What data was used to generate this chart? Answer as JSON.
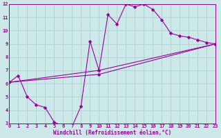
{
  "xlabel": "Windchill (Refroidissement éolien,°C)",
  "background_color": "#cce8e8",
  "grid_color": "#aacccc",
  "line_color": "#990099",
  "xmin": 0,
  "xmax": 23,
  "ymin": 3,
  "ymax": 12,
  "line1_x": [
    0,
    1,
    2,
    3,
    4,
    5,
    6,
    7,
    8,
    9,
    10,
    11,
    12,
    13,
    14,
    15,
    16,
    17,
    18,
    19,
    20,
    21,
    22,
    23
  ],
  "line1_y": [
    6.1,
    6.6,
    5.0,
    4.4,
    4.2,
    3.1,
    2.8,
    2.75,
    4.3,
    9.2,
    7.0,
    11.2,
    10.5,
    12.0,
    11.8,
    12.0,
    11.6,
    10.8,
    9.8,
    9.6,
    9.5,
    9.3,
    9.1,
    9.0
  ],
  "line2_x": [
    0,
    10,
    23
  ],
  "line2_y": [
    6.1,
    7.0,
    9.0
  ],
  "line3_x": [
    0,
    10,
    23
  ],
  "line3_y": [
    6.1,
    6.7,
    9.0
  ],
  "xticks": [
    0,
    1,
    2,
    3,
    4,
    5,
    6,
    7,
    8,
    9,
    10,
    11,
    12,
    13,
    14,
    15,
    16,
    17,
    18,
    19,
    20,
    21,
    22,
    23
  ],
  "yticks": [
    3,
    4,
    5,
    6,
    7,
    8,
    9,
    10,
    11,
    12
  ],
  "marker_size": 2.5,
  "line_width": 0.8,
  "tick_fontsize": 5.0,
  "xlabel_fontsize": 5.5
}
